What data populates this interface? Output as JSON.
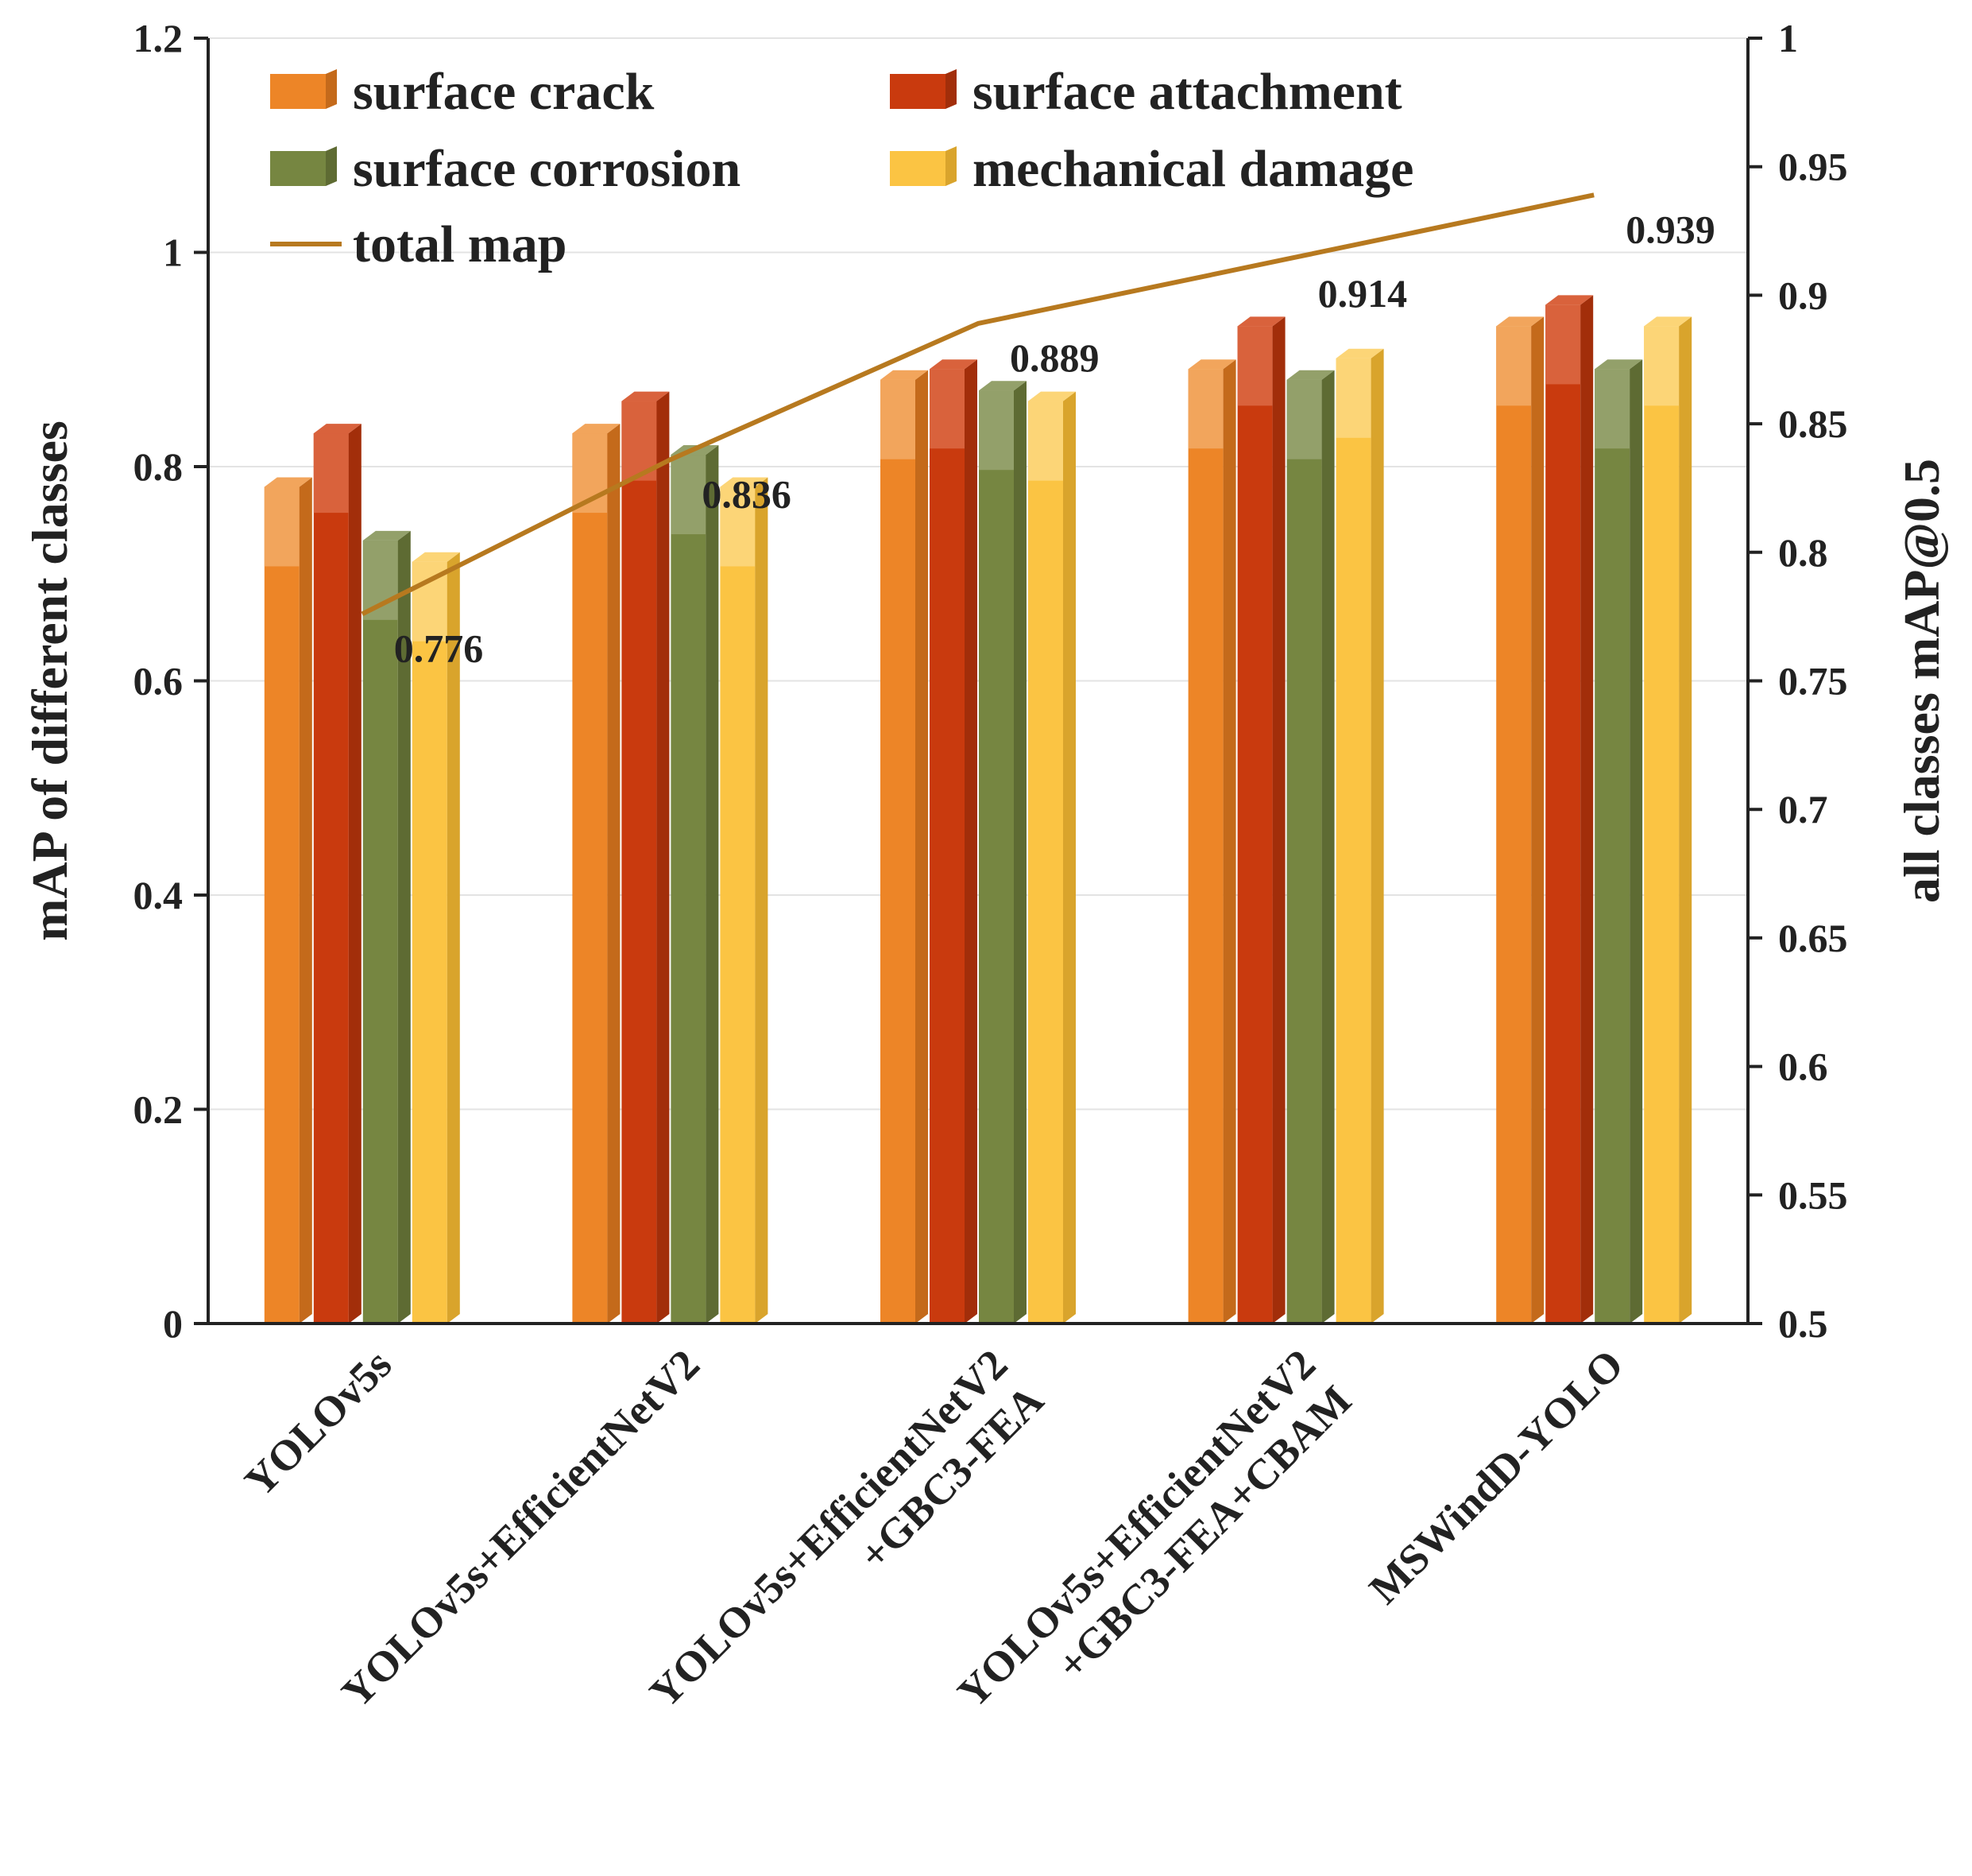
{
  "chart_data": {
    "type": "bar",
    "categories": [
      [
        "YOLOv5s"
      ],
      [
        "YOLOv5s+EfficientNetV2"
      ],
      [
        "YOLOv5s+EfficientNetV2",
        "+GBC3-FEA"
      ],
      [
        "YOLOv5s+EfficientNetV2",
        "+GBC3-FEA+CBAM"
      ],
      [
        "MSWindD-YOLO"
      ]
    ],
    "series": [
      {
        "name": "surface crack",
        "values": [
          0.79,
          0.84,
          0.89,
          0.9,
          0.94
        ],
        "color": "#ED8527",
        "light": "#F2A55C",
        "dark": "#C46A1B"
      },
      {
        "name": "surface attachment",
        "values": [
          0.84,
          0.87,
          0.9,
          0.94,
          0.96
        ],
        "color": "#C93A0E",
        "light": "#D9623C",
        "dark": "#A22E0A"
      },
      {
        "name": "surface corrosion",
        "values": [
          0.74,
          0.82,
          0.88,
          0.89,
          0.9
        ],
        "color": "#768641",
        "light": "#93A06A",
        "dark": "#5E6B33"
      },
      {
        "name": "mechanical damage",
        "values": [
          0.72,
          0.79,
          0.87,
          0.91,
          0.94
        ],
        "color": "#FBC443",
        "light": "#FCD577",
        "dark": "#D9A42C"
      }
    ],
    "line": {
      "name": "total map",
      "values": [
        0.776,
        0.836,
        0.889,
        0.914,
        0.939
      ],
      "labels": [
        "0.776",
        "0.836",
        "0.889",
        "0.914",
        "0.939"
      ],
      "color": "#B7791F"
    },
    "y_left": {
      "label": "mAP of different classes",
      "range": [
        0,
        1.2
      ],
      "ticks": [
        0,
        0.2,
        0.4,
        0.6,
        0.8,
        1,
        1.2
      ],
      "tick_labels": [
        "0",
        "0.2",
        "0.4",
        "0.6",
        "0.8",
        "1",
        "1.2"
      ]
    },
    "y_right": {
      "label": "all classes mAP@0.5",
      "range": [
        0.5,
        1
      ],
      "ticks": [
        0.5,
        0.55,
        0.6,
        0.65,
        0.7,
        0.75,
        0.8,
        0.85,
        0.9,
        0.95,
        1
      ],
      "tick_labels": [
        "0.5",
        "0.55",
        "0.6",
        "0.65",
        "0.7",
        "0.75",
        "0.8",
        "0.85",
        "0.9",
        "0.95",
        "1"
      ]
    },
    "legend_position": "top-left",
    "grid": true
  }
}
